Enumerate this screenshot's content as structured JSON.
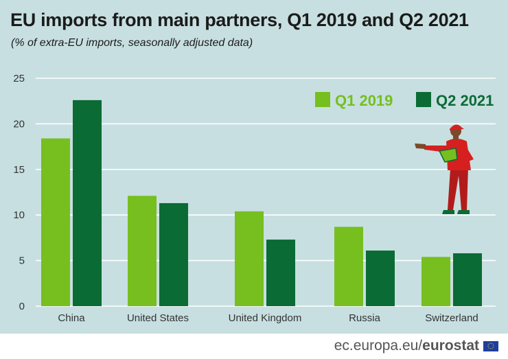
{
  "header": {
    "title": "EU imports from main partners, Q1 2019 and Q2 2021",
    "subtitle": "(% of extra-EU imports, seasonally adjusted data)"
  },
  "footer": {
    "site": "ec.europa.eu/",
    "brand": "eurostat"
  },
  "colors": {
    "background": "#c7dfe0",
    "q1_2019": "#76bf1f",
    "q2_2021": "#0b6b35",
    "grid": "#ffffff"
  },
  "chart_data": {
    "type": "bar",
    "categories": [
      "China",
      "United States",
      "United Kingdom",
      "Russia",
      "Switzerland"
    ],
    "series": [
      {
        "name": "Q1 2019",
        "values": [
          18.4,
          12.1,
          10.4,
          8.7,
          5.4
        ]
      },
      {
        "name": "Q2 2021",
        "values": [
          22.6,
          11.3,
          7.3,
          6.1,
          5.8
        ]
      }
    ],
    "title": "EU imports from main partners, Q1 2019 and Q2 2021",
    "xlabel": "",
    "ylabel": "",
    "ylim": [
      0,
      25
    ],
    "yticks": [
      0,
      5,
      10,
      15,
      20,
      25
    ],
    "grid": true,
    "legend_position": "top-right"
  }
}
